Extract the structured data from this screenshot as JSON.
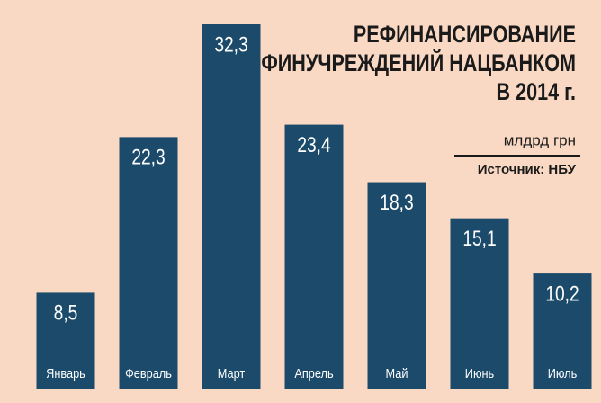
{
  "chart_data": {
    "type": "bar",
    "title": [
      "РЕФИНАНСИРОВАНИЕ",
      "ФИНУЧРЕЖДЕНИЙ НАЦБАНКОМ",
      "В 2014 г."
    ],
    "subtitle": "млдрд грн",
    "source": "Источник: НБУ",
    "categories": [
      "Январь",
      "Февраль",
      "Март",
      "Апрель",
      "Май",
      "Июнь",
      "Июль"
    ],
    "values": [
      8.5,
      22.3,
      32.3,
      23.4,
      18.3,
      15.1,
      10.2
    ],
    "value_labels": [
      "8,5",
      "22,3",
      "32,3",
      "23,4",
      "18,3",
      "15,1",
      "10,2"
    ],
    "color": "#1b4a6b"
  }
}
